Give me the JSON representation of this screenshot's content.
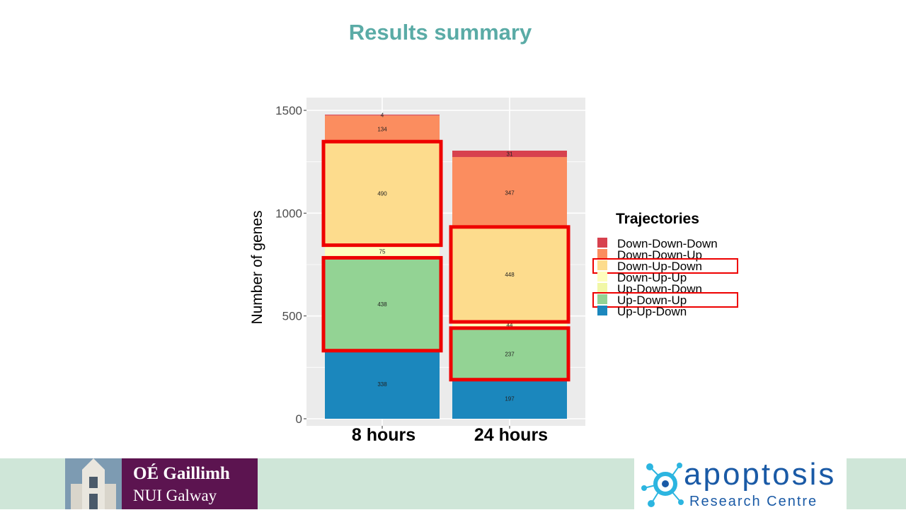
{
  "slide": {
    "title": "Results summary"
  },
  "chart_data": {
    "type": "bar",
    "stacked": true,
    "categories": [
      "8 hours",
      "24 hours"
    ],
    "ylabel": "Number of genes",
    "xlabel": "",
    "ylim": [
      0,
      1560
    ],
    "yticks": [
      0,
      500,
      1000,
      1500
    ],
    "grid": true,
    "legend": {
      "title": "Trajectories",
      "position": "right"
    },
    "series": [
      {
        "name": "Up-Up-Down",
        "color": "#1b87bd",
        "values": [
          338,
          197
        ]
      },
      {
        "name": "Up-Down-Up",
        "color": "#93d394",
        "values": [
          438,
          237
        ]
      },
      {
        "name": "Up-Down-Down",
        "color": "#f1f7a6",
        "values": [
          0,
          0
        ]
      },
      {
        "name": "Down-Up-Up",
        "color": "#fefebd",
        "values": [
          75,
          44
        ]
      },
      {
        "name": "Down-Up-Down",
        "color": "#fddc8d",
        "values": [
          490,
          448
        ]
      },
      {
        "name": "Down-Down-Up",
        "color": "#fb8d5f",
        "values": [
          134,
          347
        ]
      },
      {
        "name": "Down-Down-Down",
        "color": "#d7414e",
        "values": [
          4,
          31
        ]
      }
    ],
    "highlight_color": "#ee0000",
    "highlighted_series": [
      "Up-Down-Up",
      "Down-Up-Down"
    ]
  },
  "footer": {
    "nui_line1": "OÉ Gaillimh",
    "nui_line2": "NUI Galway",
    "apoptosis_word": "apoptosis",
    "apoptosis_sub": "Research Centre"
  }
}
